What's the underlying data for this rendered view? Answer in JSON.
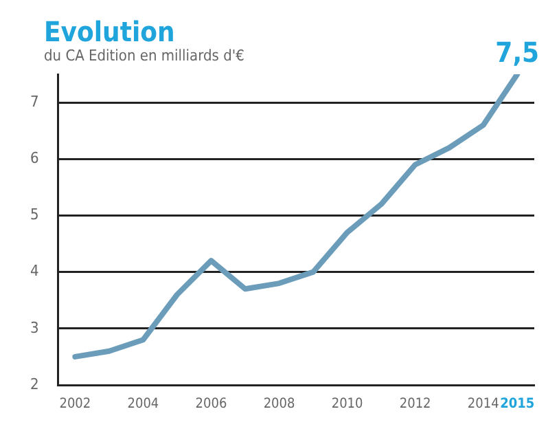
{
  "chart_data": {
    "type": "line",
    "title": "Evolution",
    "subtitle": "du CA Edition en milliards d'€",
    "categories": [
      "2002",
      null,
      "2004",
      null,
      "2006",
      null,
      "2008",
      null,
      "2010",
      null,
      "2012",
      null,
      "2014",
      "2015"
    ],
    "series": [
      {
        "color": "#6b9dbb",
        "values": [
          2.5,
          2.6,
          2.8,
          3.6,
          4.2,
          3.7,
          3.8,
          4.0,
          4.7,
          5.2,
          5.9,
          6.2,
          6.6,
          7.5
        ]
      }
    ],
    "ylim": [
      2,
      7.5
    ],
    "yticks": [
      2,
      3,
      4,
      5,
      6,
      7
    ],
    "grid": "y",
    "legend": false,
    "marker": "none",
    "line_style": "solid",
    "annotations": [
      {
        "text": "7,5",
        "x": "2015",
        "y": 7.5
      }
    ]
  }
}
